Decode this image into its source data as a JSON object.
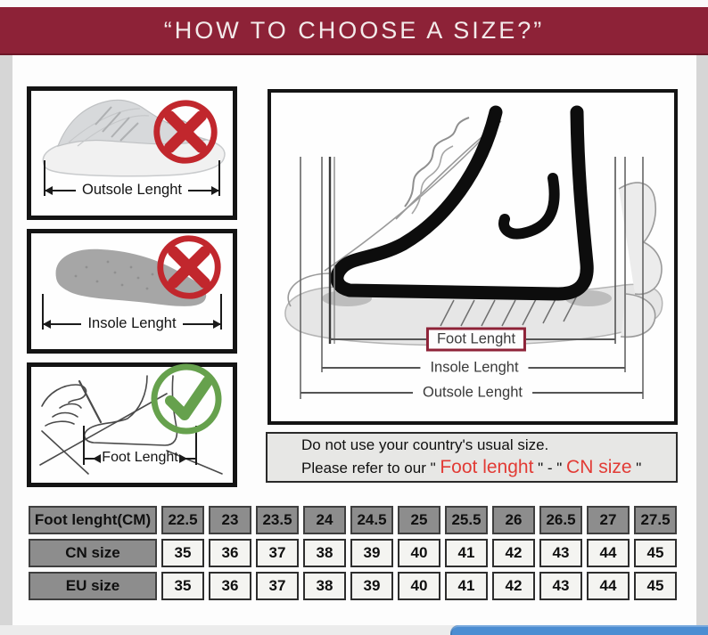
{
  "banner": {
    "title": "“HOW TO CHOOSE A SIZE?”"
  },
  "panels": [
    {
      "label": "Outsole Lenght",
      "verdict": "wrong"
    },
    {
      "label": "Insole Lenght",
      "verdict": "wrong"
    },
    {
      "label": "Foot Lenght",
      "verdict": "correct"
    }
  ],
  "diagram": {
    "foot_label": "Foot Lenght",
    "insole_label": "Insole Lenght",
    "outsole_label": "Outsole Lenght"
  },
  "notice": {
    "line1": "Do not use your country's usual size.",
    "line2_prefix": "Please refer to our \" ",
    "line2_highlight1": "Foot lenght",
    "line2_mid": " \" - \" ",
    "line2_highlight2": "CN size",
    "line2_suffix": " \""
  },
  "size_table": {
    "rows": [
      {
        "header": "Foot lenght(CM)",
        "style": "gray",
        "values": [
          "22.5",
          "23",
          "23.5",
          "24",
          "24.5",
          "25",
          "25.5",
          "26",
          "26.5",
          "27",
          "27.5"
        ]
      },
      {
        "header": "CN size",
        "style": "light",
        "values": [
          "35",
          "36",
          "37",
          "38",
          "39",
          "40",
          "41",
          "42",
          "43",
          "44",
          "45"
        ]
      },
      {
        "header": "EU size",
        "style": "light",
        "values": [
          "35",
          "36",
          "37",
          "38",
          "39",
          "40",
          "41",
          "42",
          "43",
          "44",
          "45"
        ]
      }
    ]
  },
  "colors": {
    "banner_bg": "#8d2237",
    "wrong_red": "#c1272d",
    "right_green": "#66a14d",
    "notice_red": "#e23b35",
    "tag_border": "#8e2338",
    "blue_bar": "#4b8dd2",
    "table_gray": "#8d8d8d"
  }
}
